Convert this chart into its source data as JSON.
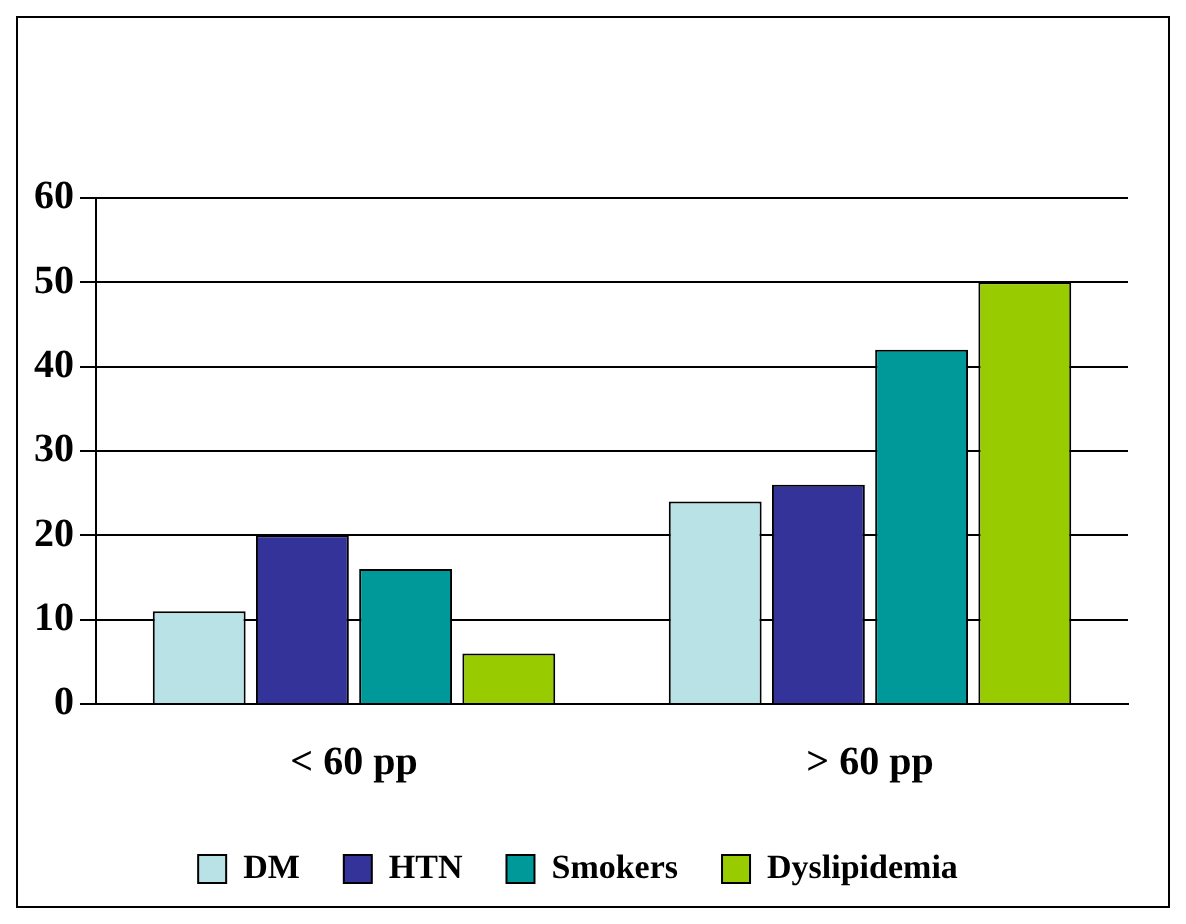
{
  "chart_data": {
    "type": "bar",
    "categories": [
      "< 60 pp",
      "> 60 pp"
    ],
    "series": [
      {
        "name": "DM",
        "color": "#b8e2e6",
        "values": [
          11,
          24
        ]
      },
      {
        "name": "HTN",
        "color": "#333399",
        "values": [
          20,
          26
        ]
      },
      {
        "name": "Smokers",
        "color": "#009999",
        "values": [
          16,
          42
        ]
      },
      {
        "name": "Dyslipidemia",
        "color": "#99cc00",
        "values": [
          6,
          50
        ]
      }
    ],
    "ylim": [
      0,
      60
    ],
    "yticks": [
      0,
      10,
      20,
      30,
      40,
      50,
      60
    ],
    "grid": "y",
    "legend": "bottom"
  }
}
